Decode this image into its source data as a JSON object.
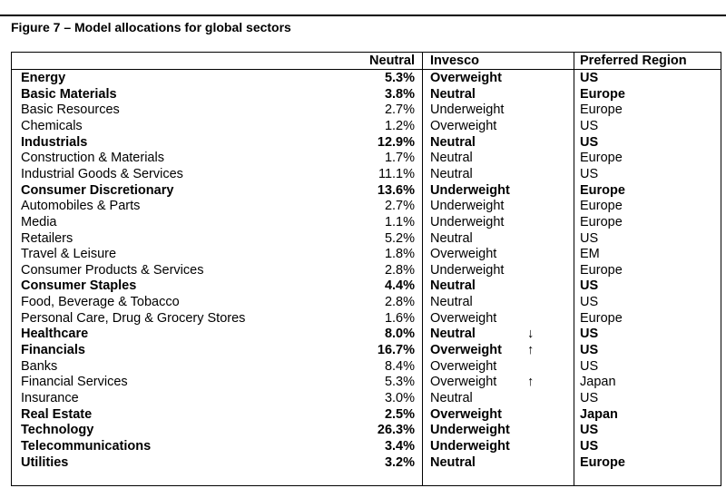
{
  "title": "Figure 7 – Model allocations for global sectors",
  "table": {
    "columns": [
      "Neutral",
      "Invesco",
      "Preferred Region"
    ],
    "rows": [
      {
        "sector": "Energy",
        "neutral": "5.3%",
        "invesco": "Overweight",
        "region": "US",
        "bold": true
      },
      {
        "sector": "Basic Materials",
        "neutral": "3.8%",
        "invesco": "Neutral",
        "region": "Europe",
        "bold": true
      },
      {
        "sector": "Basic Resources",
        "neutral": "2.7%",
        "invesco": "Underweight",
        "region": "Europe",
        "bold": false
      },
      {
        "sector": "Chemicals",
        "neutral": "1.2%",
        "invesco": "Overweight",
        "region": "US",
        "bold": false
      },
      {
        "sector": "Industrials",
        "neutral": "12.9%",
        "invesco": "Neutral",
        "region": "US",
        "bold": true
      },
      {
        "sector": "Construction & Materials",
        "neutral": "1.7%",
        "invesco": "Neutral",
        "region": "Europe",
        "bold": false
      },
      {
        "sector": "Industrial Goods & Services",
        "neutral": "11.1%",
        "invesco": "Neutral",
        "region": "US",
        "bold": false
      },
      {
        "sector": "Consumer Discretionary",
        "neutral": "13.6%",
        "invesco": "Underweight",
        "region": "Europe",
        "bold": true
      },
      {
        "sector": "Automobiles & Parts",
        "neutral": "2.7%",
        "invesco": "Underweight",
        "region": "Europe",
        "bold": false
      },
      {
        "sector": "Media",
        "neutral": "1.1%",
        "invesco": "Underweight",
        "region": "Europe",
        "bold": false
      },
      {
        "sector": "Retailers",
        "neutral": "5.2%",
        "invesco": "Neutral",
        "region": "US",
        "bold": false
      },
      {
        "sector": "Travel & Leisure",
        "neutral": "1.8%",
        "invesco": "Overweight",
        "region": "EM",
        "bold": false
      },
      {
        "sector": "Consumer Products & Services",
        "neutral": "2.8%",
        "invesco": "Underweight",
        "region": "Europe",
        "bold": false
      },
      {
        "sector": "Consumer Staples",
        "neutral": "4.4%",
        "invesco": "Neutral",
        "region": "US",
        "bold": true
      },
      {
        "sector": "Food, Beverage & Tobacco",
        "neutral": "2.8%",
        "invesco": "Neutral",
        "region": "US",
        "bold": false
      },
      {
        "sector": "Personal Care, Drug & Grocery Stores",
        "neutral": "1.6%",
        "invesco": "Overweight",
        "region": "Europe",
        "bold": false
      },
      {
        "sector": "Healthcare",
        "neutral": "8.0%",
        "invesco": "Neutral",
        "arrow": "↓",
        "region": "US",
        "bold": true
      },
      {
        "sector": "Financials",
        "neutral": "16.7%",
        "invesco": "Overweight",
        "arrow": "↑",
        "region": "US",
        "bold": true
      },
      {
        "sector": "Banks",
        "neutral": "8.4%",
        "invesco": "Overweight",
        "region": "US",
        "bold": false
      },
      {
        "sector": "Financial Services",
        "neutral": "5.3%",
        "invesco": "Overweight",
        "arrow": "↑",
        "region": "Japan",
        "bold": false
      },
      {
        "sector": "Insurance",
        "neutral": "3.0%",
        "invesco": "Neutral",
        "region": "US",
        "bold": false
      },
      {
        "sector": "Real Estate",
        "neutral": "2.5%",
        "invesco": "Overweight",
        "region": "Japan",
        "bold": true
      },
      {
        "sector": "Technology",
        "neutral": "26.3%",
        "invesco": "Underweight",
        "region": "US",
        "bold": true
      },
      {
        "sector": "Telecommunications",
        "neutral": "3.4%",
        "invesco": "Underweight",
        "region": "US",
        "bold": true
      },
      {
        "sector": "Utilities",
        "neutral": "3.2%",
        "invesco": "Neutral",
        "region": "Europe",
        "bold": true
      }
    ]
  }
}
